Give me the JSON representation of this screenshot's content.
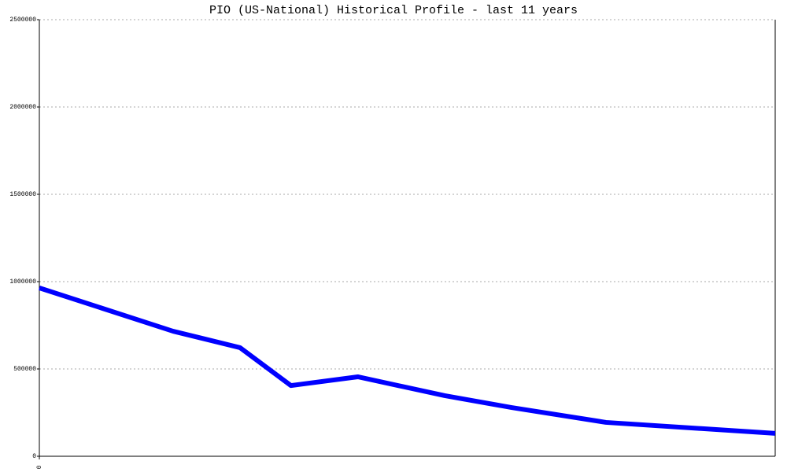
{
  "chart_data": {
    "type": "line",
    "title": "PIO (US-National) Historical Profile - last 11 years",
    "x": [
      0,
      2,
      3,
      3.76,
      4.76,
      6.06,
      7.06,
      8.47,
      11
    ],
    "series": [
      {
        "color": "#0000ff",
        "values": [
          964000,
          716000,
          622000,
          405000,
          455000,
          347000,
          279000,
          194000,
          131000
        ]
      }
    ],
    "xlim": [
      0,
      11
    ],
    "xticks": [
      0
    ],
    "ylim": [
      0,
      2500000
    ],
    "yticks": [
      0,
      500000,
      1000000,
      1500000,
      2000000,
      2500000
    ],
    "grid": true
  }
}
